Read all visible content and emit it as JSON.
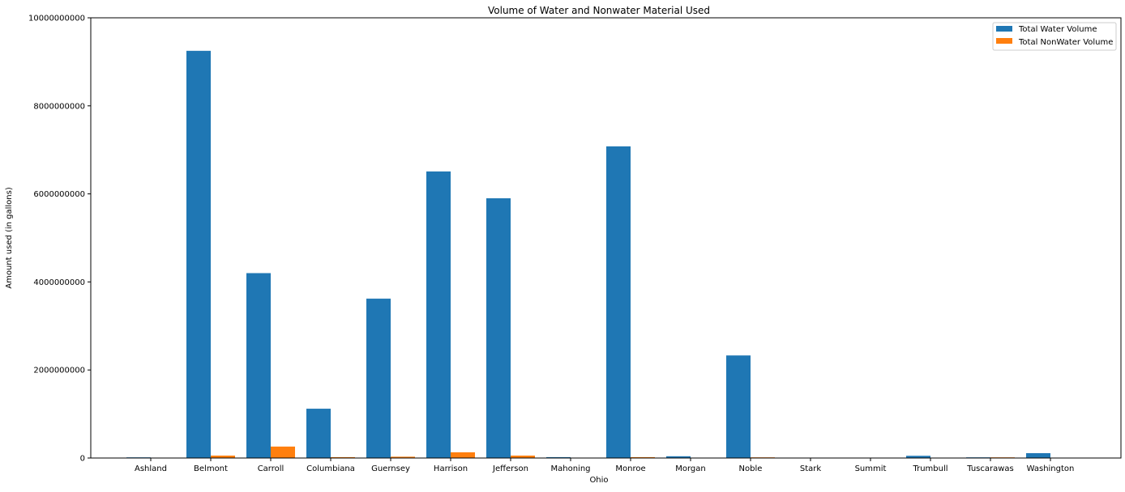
{
  "chart_data": {
    "type": "bar",
    "title": "Volume of Water and Nonwater Material Used",
    "xlabel": "Ohio",
    "ylabel": "Amount used (in gallons)",
    "ylim": [
      0,
      10000000000
    ],
    "yticks": [
      0,
      2000000000,
      4000000000,
      6000000000,
      8000000000,
      10000000000
    ],
    "ytick_labels": [
      "0",
      "2000000000",
      "4000000000",
      "6000000000",
      "8000000000",
      "10000000000"
    ],
    "legend_position": "top-right",
    "grid": false,
    "categories": [
      "Ashland",
      "Belmont",
      "Carroll",
      "Columbiana",
      "Guernsey",
      "Harrison",
      "Jefferson",
      "Mahoning",
      "Monroe",
      "Morgan",
      "Noble",
      "Stark",
      "Summit",
      "Trumbull",
      "Tuscarawas",
      "Washington"
    ],
    "series": [
      {
        "name": "Total Water Volume",
        "color": "#1f77b4",
        "values": [
          15000000,
          9250000000,
          4200000000,
          1120000000,
          3620000000,
          6510000000,
          5900000000,
          20000000,
          7080000000,
          40000000,
          2330000000,
          0,
          0,
          50000000,
          15000000,
          110000000
        ]
      },
      {
        "name": "Total NonWater Volume",
        "color": "#ff7f0e",
        "values": [
          0,
          55000000,
          260000000,
          20000000,
          30000000,
          130000000,
          55000000,
          0,
          20000000,
          0,
          15000000,
          0,
          0,
          0,
          15000000,
          0
        ]
      }
    ]
  }
}
